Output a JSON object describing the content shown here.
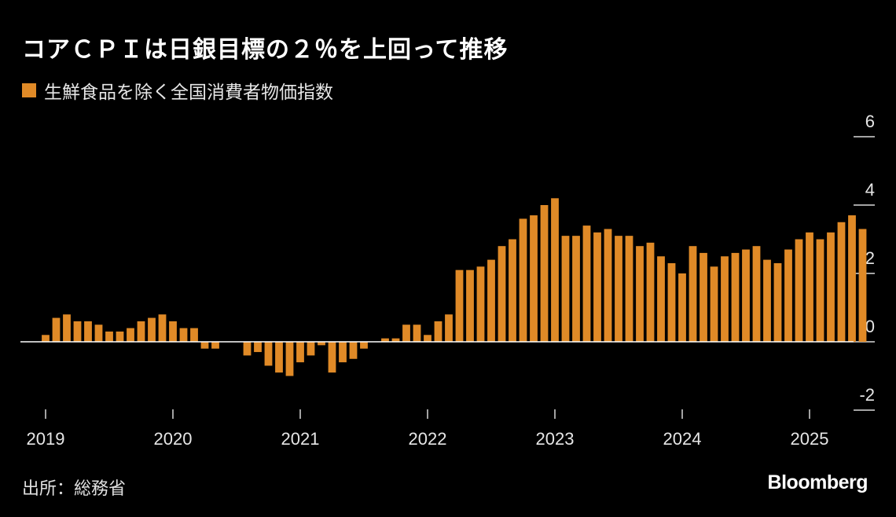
{
  "title": "コアＣＰＩは日銀目標の２％を上回って推移",
  "legend_label": "生鮮食品を除く全国消費者物価指数",
  "source": "出所：総務省",
  "logo": "Bloomberg",
  "colors": {
    "bar": "#e08a27",
    "background": "#000000",
    "axis": "#ffffff"
  },
  "chart_data": {
    "type": "bar",
    "title": "コアＣＰＩは日銀目標の２％を上回って推移",
    "series": [
      {
        "name": "生鮮食品を除く全国消費者物価指数"
      }
    ],
    "ylim": [
      -2,
      6
    ],
    "yticks": [
      "6",
      "4",
      "2",
      "0",
      "-2"
    ],
    "ytick_values": [
      6,
      4,
      2,
      0,
      -2
    ],
    "xticks": [
      "2019",
      "2020",
      "2021",
      "2022",
      "2023",
      "2024",
      "2025"
    ],
    "x_start": "2019-01",
    "x_end": "2025-12",
    "data_start": "2019-01",
    "values": [
      0.2,
      0.7,
      0.8,
      0.6,
      0.6,
      0.5,
      0.3,
      0.3,
      0.4,
      0.6,
      0.7,
      0.8,
      0.6,
      0.4,
      0.4,
      -0.2,
      -0.2,
      -0.0,
      -0.0,
      -0.4,
      -0.3,
      -0.7,
      -0.9,
      -1.0,
      -0.6,
      -0.4,
      -0.1,
      -0.9,
      -0.6,
      -0.5,
      -0.2,
      -0.0,
      0.1,
      0.1,
      0.5,
      0.5,
      0.2,
      0.6,
      0.8,
      2.1,
      2.1,
      2.2,
      2.4,
      2.8,
      3.0,
      3.6,
      3.7,
      4.0,
      4.2,
      3.1,
      3.1,
      3.4,
      3.2,
      3.3,
      3.1,
      3.1,
      2.8,
      2.9,
      2.5,
      2.3,
      2.0,
      2.8,
      2.6,
      2.2,
      2.5,
      2.6,
      2.7,
      2.8,
      2.4,
      2.3,
      2.7,
      3.0,
      3.2,
      3.0,
      3.2,
      3.5,
      3.7,
      3.3
    ]
  }
}
